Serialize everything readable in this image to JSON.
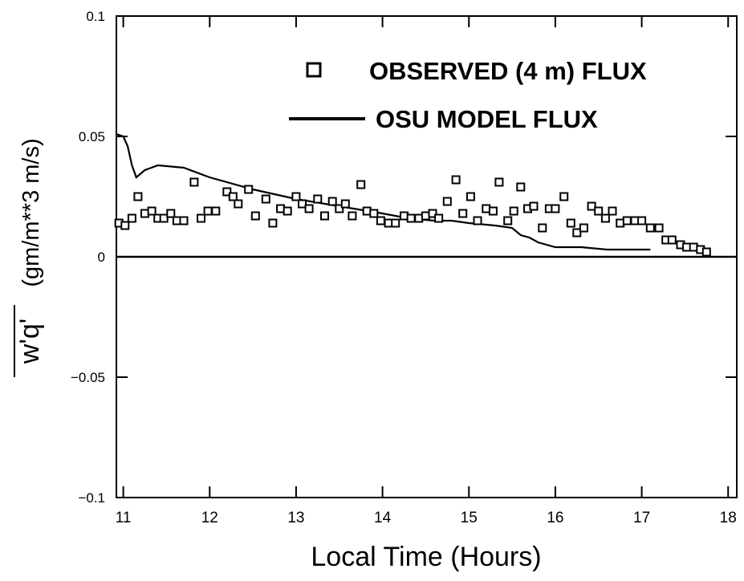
{
  "chart_data": {
    "type": "scatter",
    "title": "",
    "xlabel": "Local Time (Hours)",
    "ylabel_overline": "w'q'",
    "ylabel_units": "(gm/m**3 m/s)",
    "xlim": [
      10.92,
      18.1
    ],
    "ylim": [
      -0.1,
      0.1
    ],
    "xticks": [
      "11",
      "12",
      "13",
      "14",
      "15",
      "16",
      "17",
      "18"
    ],
    "yticks": [
      "0.1",
      "0.05",
      "0",
      "−0.05",
      "−0.1"
    ],
    "xtick_values": [
      11,
      12,
      13,
      14,
      15,
      16,
      17,
      18
    ],
    "ytick_values": [
      0.1,
      0.05,
      0,
      -0.05,
      -0.1
    ],
    "grid": false,
    "legend_position": "top-right",
    "colors": {
      "ink": "#000000",
      "background": "#ffffff"
    },
    "zero_line": true,
    "series": [
      {
        "name": "OBSERVED  (4 m)  FLUX",
        "kind": "scatter",
        "marker": "open-square",
        "points": [
          [
            10.95,
            0.014
          ],
          [
            11.02,
            0.013
          ],
          [
            11.1,
            0.016
          ],
          [
            11.17,
            0.025
          ],
          [
            11.25,
            0.018
          ],
          [
            11.33,
            0.019
          ],
          [
            11.4,
            0.016
          ],
          [
            11.47,
            0.016
          ],
          [
            11.55,
            0.018
          ],
          [
            11.62,
            0.015
          ],
          [
            11.7,
            0.015
          ],
          [
            11.82,
            0.031
          ],
          [
            11.9,
            0.016
          ],
          [
            11.98,
            0.019
          ],
          [
            12.07,
            0.019
          ],
          [
            12.2,
            0.027
          ],
          [
            12.27,
            0.025
          ],
          [
            12.33,
            0.022
          ],
          [
            12.45,
            0.028
          ],
          [
            12.53,
            0.017
          ],
          [
            12.65,
            0.024
          ],
          [
            12.73,
            0.014
          ],
          [
            12.82,
            0.02
          ],
          [
            12.9,
            0.019
          ],
          [
            13.0,
            0.025
          ],
          [
            13.07,
            0.022
          ],
          [
            13.15,
            0.02
          ],
          [
            13.25,
            0.024
          ],
          [
            13.33,
            0.017
          ],
          [
            13.42,
            0.023
          ],
          [
            13.5,
            0.02
          ],
          [
            13.57,
            0.022
          ],
          [
            13.65,
            0.017
          ],
          [
            13.75,
            0.03
          ],
          [
            13.82,
            0.019
          ],
          [
            13.9,
            0.018
          ],
          [
            13.98,
            0.015
          ],
          [
            14.07,
            0.014
          ],
          [
            14.15,
            0.014
          ],
          [
            14.25,
            0.017
          ],
          [
            14.33,
            0.016
          ],
          [
            14.42,
            0.016
          ],
          [
            14.5,
            0.017
          ],
          [
            14.58,
            0.018
          ],
          [
            14.65,
            0.016
          ],
          [
            14.75,
            0.023
          ],
          [
            14.85,
            0.032
          ],
          [
            14.93,
            0.018
          ],
          [
            15.02,
            0.025
          ],
          [
            15.1,
            0.015
          ],
          [
            15.2,
            0.02
          ],
          [
            15.28,
            0.019
          ],
          [
            15.35,
            0.031
          ],
          [
            15.45,
            0.015
          ],
          [
            15.52,
            0.019
          ],
          [
            15.6,
            0.029
          ],
          [
            15.68,
            0.02
          ],
          [
            15.75,
            0.021
          ],
          [
            15.85,
            0.012
          ],
          [
            15.93,
            0.02
          ],
          [
            16.0,
            0.02
          ],
          [
            16.1,
            0.025
          ],
          [
            16.18,
            0.014
          ],
          [
            16.25,
            0.01
          ],
          [
            16.33,
            0.012
          ],
          [
            16.42,
            0.021
          ],
          [
            16.5,
            0.019
          ],
          [
            16.58,
            0.016
          ],
          [
            16.66,
            0.019
          ],
          [
            16.75,
            0.014
          ],
          [
            16.83,
            0.015
          ],
          [
            16.92,
            0.015
          ],
          [
            17.0,
            0.015
          ],
          [
            17.1,
            0.012
          ],
          [
            17.2,
            0.012
          ],
          [
            17.28,
            0.007
          ],
          [
            17.35,
            0.007
          ],
          [
            17.45,
            0.005
          ],
          [
            17.52,
            0.004
          ],
          [
            17.6,
            0.004
          ],
          [
            17.68,
            0.003
          ],
          [
            17.75,
            0.002
          ]
        ]
      },
      {
        "name": "OSU MODEL FLUX",
        "kind": "line",
        "points": [
          [
            10.92,
            0.051
          ],
          [
            11.0,
            0.05
          ],
          [
            11.05,
            0.046
          ],
          [
            11.1,
            0.038
          ],
          [
            11.15,
            0.033
          ],
          [
            11.25,
            0.036
          ],
          [
            11.4,
            0.038
          ],
          [
            11.7,
            0.037
          ],
          [
            12.0,
            0.033
          ],
          [
            12.5,
            0.028
          ],
          [
            13.0,
            0.024
          ],
          [
            13.5,
            0.021
          ],
          [
            14.0,
            0.018
          ],
          [
            14.3,
            0.016
          ],
          [
            14.6,
            0.015
          ],
          [
            14.8,
            0.015
          ],
          [
            15.0,
            0.014
          ],
          [
            15.3,
            0.013
          ],
          [
            15.5,
            0.012
          ],
          [
            15.6,
            0.009
          ],
          [
            15.7,
            0.008
          ],
          [
            15.8,
            0.006
          ],
          [
            16.0,
            0.004
          ],
          [
            16.3,
            0.004
          ],
          [
            16.6,
            0.003
          ],
          [
            17.1,
            0.003
          ]
        ]
      }
    ]
  }
}
